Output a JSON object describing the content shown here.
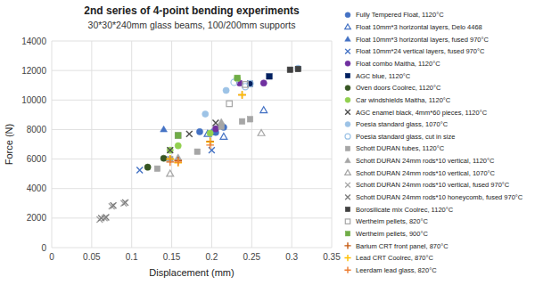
{
  "chart_data": {
    "type": "scatter",
    "title": "2nd series of 4-point bending experiments",
    "subtitle": "30*30*240mm glass beams, 100/200mm supports",
    "x_label": "Displacement (mm)",
    "y_label": "Force (N)",
    "xlim": [
      0,
      0.35
    ],
    "ylim": [
      0,
      14000
    ],
    "xticks": [
      0,
      0.05,
      0.1,
      0.15,
      0.2,
      0.25,
      0.3,
      0.35
    ],
    "yticks": [
      0,
      2000,
      4000,
      6000,
      8000,
      10000,
      12000,
      14000
    ],
    "grid": true,
    "legend": "right",
    "series": [
      {
        "name": "Fully Tempered Float, 1120°C",
        "color": "#4472C4",
        "marker": "circle",
        "x": [
          0.185,
          0.205,
          0.215
        ],
        "values": [
          7850,
          7800,
          8150
        ]
      },
      {
        "name": "Float 10mm*3 horizontal layers, Delo 4468",
        "color": "#4472C4",
        "marker": "triangle-open",
        "x": [
          0.195,
          0.215,
          0.265
        ],
        "values": [
          7700,
          7500,
          9300
        ]
      },
      {
        "name": "Float 10mm*3 horizontal layers, fused 970°C",
        "color": "#4472C4",
        "marker": "triangle",
        "x": [
          0.14,
          0.2
        ],
        "values": [
          8000,
          7800
        ]
      },
      {
        "name": "Float 10mm*24 vertical layers, fused 970°C",
        "color": "#4472C4",
        "marker": "x",
        "x": [
          0.11,
          0.2
        ],
        "values": [
          5250,
          6600
        ]
      },
      {
        "name": "Float combo Maitha, 1120°C",
        "color": "#7030A0",
        "marker": "circle",
        "x": [
          0.205,
          0.235,
          0.265
        ],
        "values": [
          8050,
          11150,
          11150
        ]
      },
      {
        "name": "AGC blue, 1120°C",
        "color": "#002060",
        "marker": "square",
        "x": [
          0.248,
          0.272
        ],
        "values": [
          11100,
          11600
        ]
      },
      {
        "name": "Oven doors Coolrec, 1120°C",
        "color": "#375623",
        "marker": "circle",
        "x": [
          0.12,
          0.14
        ],
        "values": [
          5450,
          6050
        ]
      },
      {
        "name": "Car windshields Maitha, 1120°C",
        "color": "#92D050",
        "marker": "circle",
        "x": [
          0.148,
          0.158,
          0.198,
          0.232
        ],
        "values": [
          6600,
          6900,
          7750,
          11450
        ]
      },
      {
        "name": "AGC enamel black, 4mm*60 pieces, 1120°C",
        "color": "#4E4E4E",
        "marker": "x",
        "x": [
          0.148,
          0.172,
          0.205
        ],
        "values": [
          6600,
          7700,
          8450
        ]
      },
      {
        "name": "Poesia standard glass, 1070°C",
        "color": "#9DC3E6",
        "marker": "circle",
        "x": [
          0.192,
          0.218,
          0.308
        ],
        "values": [
          9050,
          10650,
          12150
        ]
      },
      {
        "name": "Poesia standard glass, cut in size",
        "color": "#9DC3E6",
        "marker": "circle-open",
        "x": [
          0.228,
          0.242,
          0.248
        ],
        "values": [
          11200,
          10900,
          11100
        ]
      },
      {
        "name": "Schott DURAN tubes, 1120°C",
        "color": "#A6A6A6",
        "marker": "square",
        "x": [
          0.132,
          0.148,
          0.182,
          0.212,
          0.238,
          0.248
        ],
        "values": [
          5350,
          6000,
          6500,
          8200,
          8550,
          8700
        ]
      },
      {
        "name": "Schott DURAN 24mm rods*10 vertical, 1120°C",
        "color": "#A6A6A6",
        "marker": "triangle",
        "x": [
          0.148,
          0.158,
          0.212
        ],
        "values": [
          5950,
          6100,
          8500
        ]
      },
      {
        "name": "Schott DURAN 24mm rods*10 vertical, 1070°C",
        "color": "#A6A6A6",
        "marker": "triangle-open",
        "x": [
          0.148,
          0.262
        ],
        "values": [
          5000,
          7750
        ]
      },
      {
        "name": "Schott DURAN 24mm rods*10 vertical, fused 970°C",
        "color": "#A6A6A6",
        "marker": "x",
        "x": [
          0.06,
          0.066,
          0.075,
          0.09
        ],
        "values": [
          1900,
          2000,
          2800,
          3000
        ]
      },
      {
        "name": "Schott DURAN 24mm rods*10 honeycomb, fused 970°C",
        "color": "#7F7F7F",
        "marker": "x",
        "x": [
          0.062,
          0.068,
          0.077,
          0.092
        ],
        "values": [
          2000,
          2050,
          2850,
          3050
        ]
      },
      {
        "name": "Borosilicate mix Coolrec, 1120°C",
        "color": "#404040",
        "marker": "square",
        "x": [
          0.298,
          0.308
        ],
        "values": [
          12050,
          12100
        ]
      },
      {
        "name": "Wertheim pellets, 820°C",
        "color": "#A6A6A6",
        "marker": "square-open",
        "x": [
          0.158,
          0.222,
          0.242
        ],
        "values": [
          7600,
          9750,
          11050
        ]
      },
      {
        "name": "Wertheim pellets, 900°C",
        "color": "#70AD47",
        "marker": "square",
        "x": [
          0.158,
          0.232
        ],
        "values": [
          7600,
          11500
        ]
      },
      {
        "name": "Barium CRT front panel, 870°C",
        "color": "#C55A11",
        "marker": "plus",
        "x": [
          0.148,
          0.158,
          0.198,
          0.238
        ],
        "values": [
          6000,
          5900,
          7200,
          10350
        ]
      },
      {
        "name": "Lead CRT Coolrec, 870°C",
        "color": "#FFC000",
        "marker": "plus",
        "x": [
          0.148,
          0.158,
          0.198,
          0.238
        ],
        "values": [
          6000,
          5750,
          7150,
          10350
        ]
      },
      {
        "name": "Leerdam lead glass, 820°C",
        "color": "#ED7D31",
        "marker": "plus",
        "x": [
          0.148,
          0.158,
          0.198
        ],
        "values": [
          5800,
          5800,
          6950
        ]
      }
    ]
  }
}
